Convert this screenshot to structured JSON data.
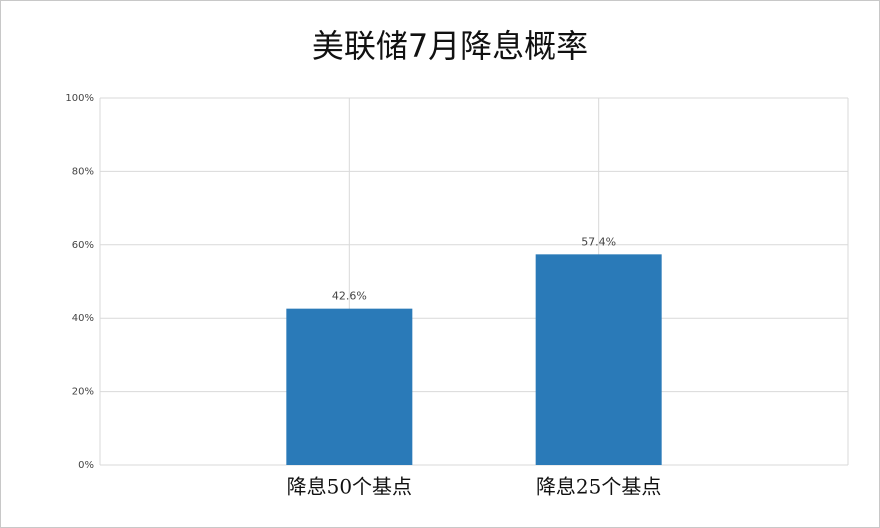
{
  "chart_data": {
    "type": "bar",
    "title": "美联储7月降息概率",
    "categories": [
      "降息50个基点",
      "降息25个基点"
    ],
    "values": [
      42.6,
      57.4
    ],
    "value_labels": [
      "42.6%",
      "57.4%"
    ],
    "color": "#2a7ab8",
    "ylim": [
      0,
      100
    ],
    "yticks": [
      {
        "value": 0,
        "label": "0%"
      },
      {
        "value": 20,
        "label": "20%"
      },
      {
        "value": 40,
        "label": "40%"
      },
      {
        "value": 60,
        "label": "60%"
      },
      {
        "value": 80,
        "label": "80%"
      },
      {
        "value": 100,
        "label": "100%"
      }
    ],
    "grid": true
  }
}
